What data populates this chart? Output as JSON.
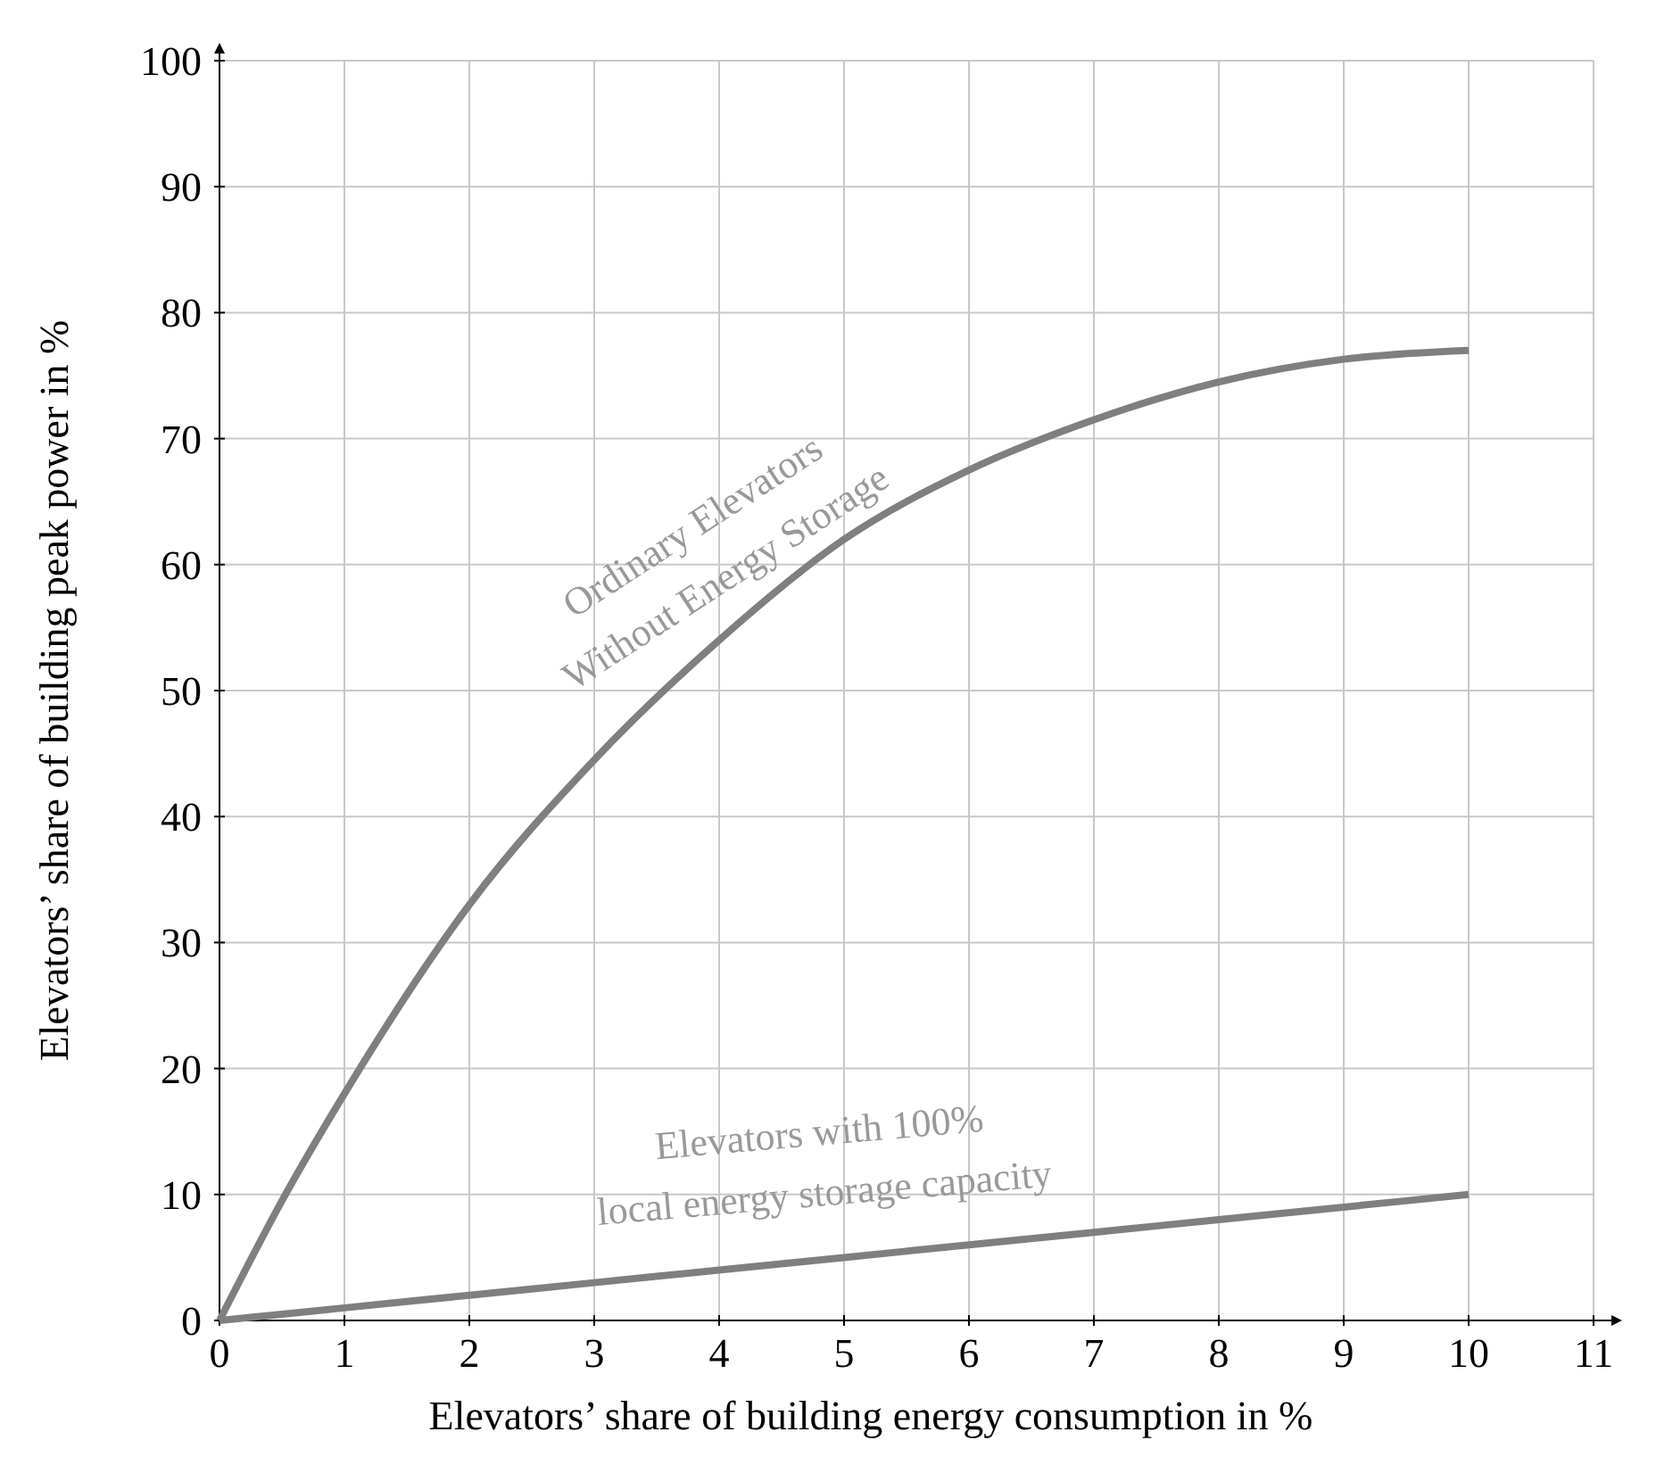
{
  "chart_data": {
    "type": "line",
    "xlabel": "Elevators’ share of building energy consumption in %",
    "ylabel": "Elevators’ share of building peak power in %",
    "xlim": [
      0,
      11
    ],
    "ylim": [
      0,
      100
    ],
    "xticks": [
      0,
      1,
      2,
      3,
      4,
      5,
      6,
      7,
      8,
      9,
      10,
      11
    ],
    "yticks": [
      0,
      10,
      20,
      30,
      40,
      50,
      60,
      70,
      80,
      90,
      100
    ],
    "grid": true,
    "x": [
      0,
      0.5,
      1,
      2,
      3,
      4,
      5,
      6,
      7,
      8,
      9,
      10
    ],
    "series": [
      {
        "name": "Ordinary Elevators\nWithout Energy Storage",
        "color": "#7f7f7f",
        "values": [
          0,
          9.5,
          18,
          33,
          44.5,
          54,
          62,
          67.5,
          71.5,
          74.5,
          76.3,
          77
        ]
      },
      {
        "name": "Elevators with 100%\nlocal energy storage capacity",
        "color": "#7f7f7f",
        "values": [
          0,
          0.5,
          1,
          2,
          3,
          4,
          5,
          6,
          7,
          8,
          9,
          10
        ]
      }
    ]
  }
}
